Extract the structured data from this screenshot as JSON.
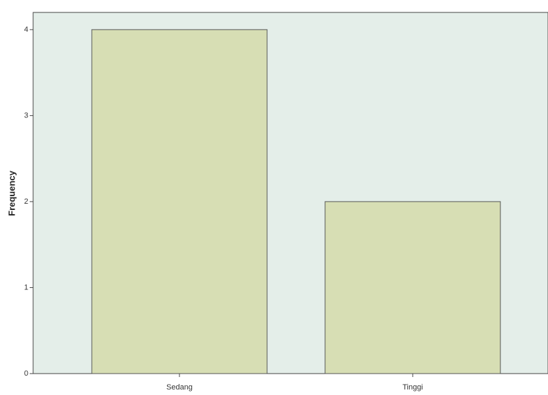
{
  "chart_data": {
    "type": "bar",
    "categories": [
      "Sedang",
      "Tinggi"
    ],
    "values": [
      4,
      2
    ],
    "color": "#d5dcae",
    "ylabel": "Frequency",
    "ylim": [
      0,
      4.2
    ],
    "yticks": [
      0,
      1,
      2,
      3,
      4
    ],
    "grid": false
  }
}
